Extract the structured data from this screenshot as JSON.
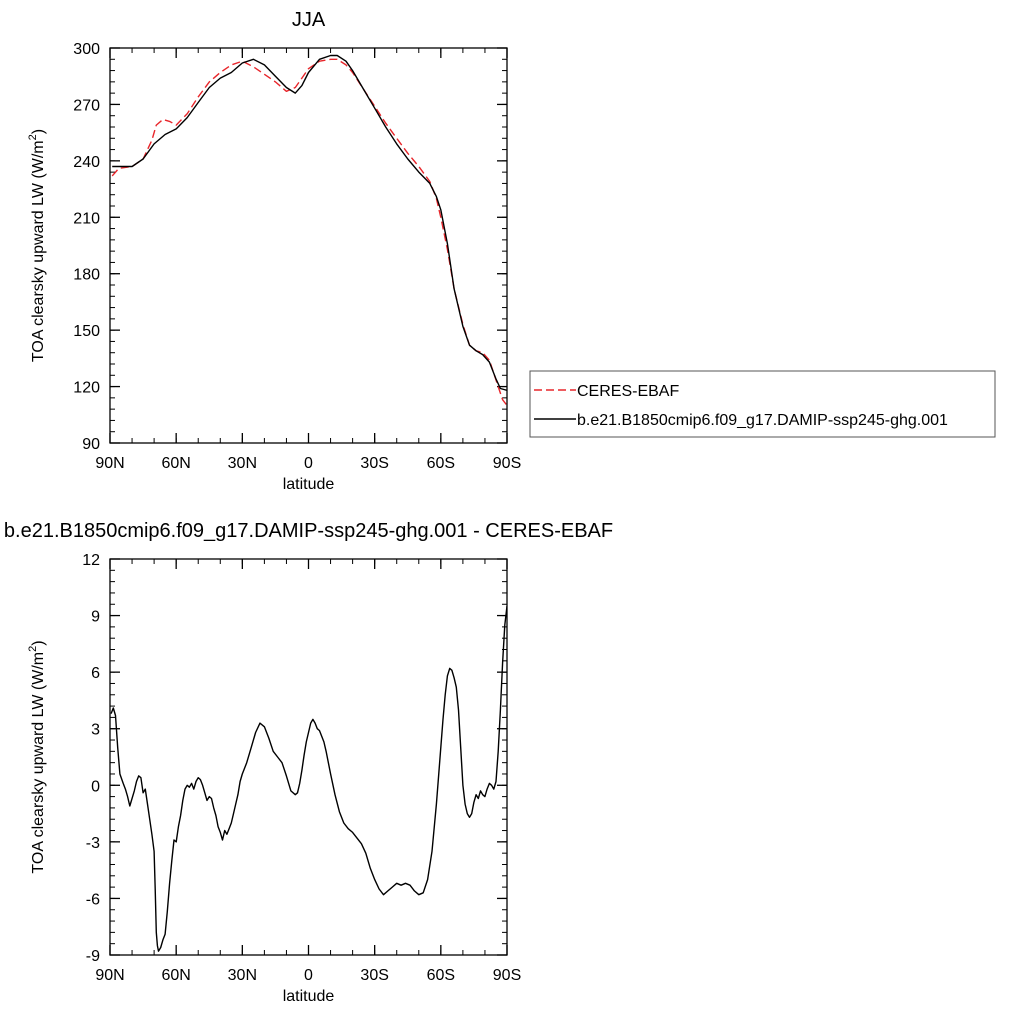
{
  "chart_data": [
    {
      "type": "line",
      "title": "JJA",
      "xlabel": "latitude",
      "ylabel_main": "TOA clearsky upward LW (W/m",
      "ylabel_sup": "2",
      "ylabel_end": ")",
      "xlim": [
        90,
        -90
      ],
      "ylim": [
        90,
        300
      ],
      "x_ticks": [
        {
          "value": 90,
          "label": "90N"
        },
        {
          "value": 60,
          "label": "60N"
        },
        {
          "value": 30,
          "label": "30N"
        },
        {
          "value": 0,
          "label": "0"
        },
        {
          "value": -30,
          "label": "30S"
        },
        {
          "value": -60,
          "label": "60S"
        },
        {
          "value": -90,
          "label": "90S"
        }
      ],
      "y_ticks": [
        {
          "value": 90,
          "label": "90"
        },
        {
          "value": 120,
          "label": "120"
        },
        {
          "value": 150,
          "label": "150"
        },
        {
          "value": 180,
          "label": "180"
        },
        {
          "value": 210,
          "label": "210"
        },
        {
          "value": 240,
          "label": "240"
        },
        {
          "value": 270,
          "label": "270"
        },
        {
          "value": 300,
          "label": "300"
        }
      ],
      "legend_position": "right",
      "series": [
        {
          "name": "CERES-EBAF",
          "color": "#e8262b",
          "dash": "dashed",
          "x": [
            89,
            86,
            80,
            75,
            71,
            69,
            66,
            63,
            60,
            55,
            50,
            45,
            40,
            35,
            30,
            25,
            20,
            15,
            10,
            6,
            3,
            0,
            -5,
            -10,
            -13,
            -17,
            -20,
            -25,
            -30,
            -35,
            -40,
            -45,
            -50,
            -55,
            -58,
            -60,
            -63,
            -66,
            -70,
            -73,
            -76,
            -79,
            -82,
            -84,
            -86,
            -88,
            -90
          ],
          "y": [
            232,
            236,
            237,
            241,
            251,
            259,
            262,
            261,
            259,
            265,
            274,
            282,
            287,
            291,
            293,
            290,
            286,
            282,
            277,
            279,
            284,
            289,
            293,
            294,
            294,
            291,
            287,
            278,
            269,
            260,
            252,
            244,
            237,
            229,
            220,
            210,
            193,
            172,
            153,
            142,
            139,
            138,
            134,
            127,
            120,
            113,
            110
          ]
        },
        {
          "name": "b.e21.B1850cmip6.f09_g17.DAMIP-ssp245-ghg.001",
          "color": "#000000",
          "dash": "solid",
          "x": [
            89,
            85,
            80,
            75,
            70,
            65,
            60,
            55,
            50,
            45,
            40,
            35,
            30,
            25,
            20,
            15,
            10,
            6,
            3,
            0,
            -5,
            -10,
            -13,
            -17,
            -20,
            -25,
            -30,
            -35,
            -40,
            -45,
            -50,
            -55,
            -58,
            -60,
            -63,
            -66,
            -70,
            -73,
            -76,
            -79,
            -82,
            -85,
            -87,
            -90
          ],
          "y": [
            237,
            237,
            237,
            241,
            249,
            254,
            257,
            263,
            271,
            279,
            284,
            287,
            292,
            294,
            291,
            285,
            279,
            276,
            280,
            287,
            294,
            296,
            296,
            293,
            288,
            278,
            268,
            258,
            249,
            241,
            234,
            228,
            221,
            214,
            196,
            172,
            152,
            142,
            139,
            137,
            133,
            124,
            119,
            118
          ]
        }
      ]
    },
    {
      "type": "line",
      "title": "b.e21.B1850cmip6.f09_g17.DAMIP-ssp245-ghg.001 - CERES-EBAF",
      "xlabel": "latitude",
      "ylabel_main": "TOA clearsky upward LW (W/m",
      "ylabel_sup": "2",
      "ylabel_end": ")",
      "xlim": [
        90,
        -90
      ],
      "ylim": [
        -9,
        12
      ],
      "x_ticks": [
        {
          "value": 90,
          "label": "90N"
        },
        {
          "value": 60,
          "label": "60N"
        },
        {
          "value": 30,
          "label": "30N"
        },
        {
          "value": 0,
          "label": "0"
        },
        {
          "value": -30,
          "label": "30S"
        },
        {
          "value": -60,
          "label": "60S"
        },
        {
          "value": -90,
          "label": "90S"
        }
      ],
      "y_ticks": [
        {
          "value": -9,
          "label": "-9"
        },
        {
          "value": -6,
          "label": "-6"
        },
        {
          "value": -3,
          "label": "-3"
        },
        {
          "value": 0,
          "label": "0"
        },
        {
          "value": 3,
          "label": "3"
        },
        {
          "value": 6,
          "label": "6"
        },
        {
          "value": 9,
          "label": "9"
        },
        {
          "value": 12,
          "label": "12"
        }
      ],
      "series": [
        {
          "name": "",
          "color": "#000000",
          "dash": "solid",
          "x": [
            89.5,
            88.5,
            87.5,
            86.5,
            85.5,
            84,
            83,
            82,
            81,
            79,
            78,
            77,
            76,
            75,
            74,
            73,
            72,
            71,
            70,
            69.5,
            69,
            68.5,
            68,
            67,
            66,
            65,
            64,
            63,
            62,
            61,
            60,
            59,
            58,
            57,
            56,
            55,
            54,
            53,
            52,
            51,
            50,
            49,
            48,
            47,
            46,
            45,
            44,
            43,
            42,
            41,
            40,
            39,
            38,
            37,
            36,
            35,
            34,
            33,
            32,
            31,
            30,
            28,
            26,
            24,
            22,
            20,
            18,
            16,
            14,
            12,
            10,
            8,
            6,
            5,
            4,
            3,
            2,
            1,
            0,
            -1,
            -2,
            -3,
            -4,
            -5,
            -6,
            -7,
            -8,
            -10,
            -12,
            -14,
            -16,
            -18,
            -20,
            -22,
            -24,
            -26,
            -28,
            -30,
            -32,
            -34,
            -36,
            -38,
            -40,
            -42,
            -44,
            -46,
            -48,
            -50,
            -52,
            -54,
            -56,
            -58,
            -59,
            -60,
            -61,
            -62,
            -63,
            -64,
            -65,
            -66,
            -67,
            -68,
            -69,
            -70,
            -71,
            -72,
            -73,
            -74,
            -75,
            -76,
            -77,
            -78,
            -79,
            -80,
            -81,
            -82,
            -83,
            -84,
            -85,
            -86,
            -87,
            -88,
            -89,
            -90
          ],
          "y": [
            3.8,
            4.1,
            3.7,
            2.0,
            0.6,
            0.1,
            -0.2,
            -0.6,
            -1.1,
            -0.3,
            0.2,
            0.5,
            0.4,
            -0.4,
            -0.2,
            -1.0,
            -1.8,
            -2.6,
            -3.5,
            -5.5,
            -7.8,
            -8.5,
            -8.8,
            -8.6,
            -8.2,
            -7.9,
            -6.7,
            -5.2,
            -4.0,
            -2.9,
            -3.0,
            -2.2,
            -1.6,
            -0.8,
            -0.2,
            0.0,
            -0.1,
            0.1,
            -0.2,
            0.2,
            0.4,
            0.3,
            0.0,
            -0.4,
            -0.8,
            -0.6,
            -0.7,
            -1.2,
            -1.6,
            -2.2,
            -2.5,
            -2.9,
            -2.4,
            -2.6,
            -2.3,
            -2.0,
            -1.5,
            -1.0,
            -0.5,
            0.2,
            0.6,
            1.2,
            2.0,
            2.8,
            3.3,
            3.1,
            2.5,
            1.8,
            1.5,
            1.2,
            0.5,
            -0.3,
            -0.5,
            -0.4,
            0.1,
            0.8,
            1.6,
            2.3,
            2.8,
            3.3,
            3.5,
            3.3,
            3.0,
            2.9,
            2.6,
            2.3,
            1.8,
            0.6,
            -0.5,
            -1.4,
            -2.0,
            -2.3,
            -2.5,
            -2.8,
            -3.1,
            -3.6,
            -4.4,
            -5.0,
            -5.5,
            -5.8,
            -5.6,
            -5.4,
            -5.2,
            -5.3,
            -5.2,
            -5.3,
            -5.6,
            -5.8,
            -5.7,
            -5.0,
            -3.5,
            -1.0,
            0.5,
            2.0,
            3.5,
            4.8,
            5.8,
            6.2,
            6.1,
            5.7,
            5.2,
            4.0,
            2.0,
            0.0,
            -1.0,
            -1.5,
            -1.7,
            -1.5,
            -0.9,
            -0.5,
            -0.7,
            -0.3,
            -0.5,
            -0.6,
            -0.2,
            0.1,
            0.0,
            -0.2,
            0.2,
            1.8,
            4.0,
            6.5,
            8.5,
            9.5
          ]
        }
      ]
    }
  ]
}
